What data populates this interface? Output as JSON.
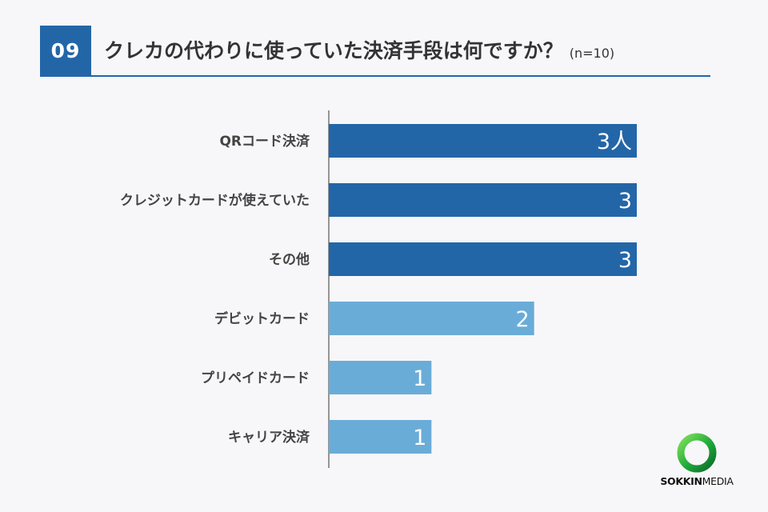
{
  "header": {
    "number": "09",
    "title": "クレカの代わりに使っていた決済手段は何ですか？",
    "sample": "(n=10)"
  },
  "colors": {
    "accent": "#2366a8",
    "bar_dark": "#2366a8",
    "bar_light": "#6aacd8",
    "label": "#444444",
    "logo_green": "#1fa83a"
  },
  "chart_data": {
    "type": "bar",
    "orientation": "horizontal",
    "categories": [
      "QRコード決済",
      "クレジットカードが使えていた",
      "その他",
      "デビットカード",
      "プリペイドカード",
      "キャリア決済"
    ],
    "values": [
      3,
      3,
      3,
      2,
      1,
      1
    ],
    "value_labels": [
      "3人",
      "3",
      "3",
      "2",
      "1",
      "1"
    ],
    "bar_colors": [
      "#2366a8",
      "#2366a8",
      "#2366a8",
      "#6aacd8",
      "#6aacd8",
      "#6aacd8"
    ],
    "xlim": [
      0,
      3
    ],
    "grid": false,
    "legend": "none"
  },
  "logo": {
    "word1": "SOKKIN",
    "word2": "MEDIA",
    "icon": "green-ring-logo-icon"
  }
}
